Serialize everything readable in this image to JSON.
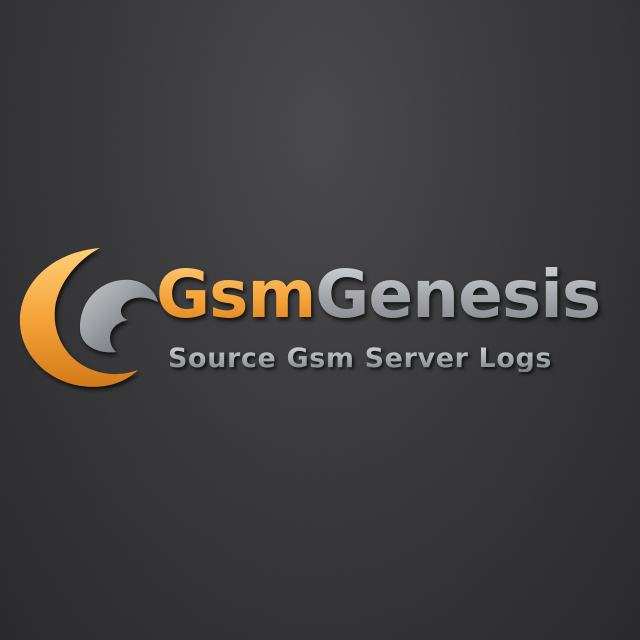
{
  "brand": {
    "title_part1": "Gsm",
    "title_part2": "Genesis",
    "tagline": "Source Gsm Server Logs"
  },
  "colors": {
    "background": "#3a3a3c",
    "accent_orange": "#f5a43a",
    "metal_gray": "#a6aaae"
  },
  "icons": {
    "logo_mark": "crescent-swoosh-icon"
  }
}
